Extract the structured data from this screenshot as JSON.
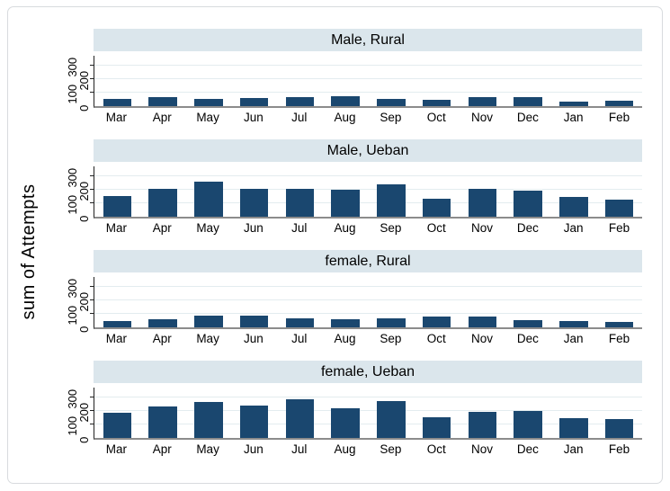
{
  "figure": {
    "y_axis_title": "sum of Attempts",
    "colors": {
      "bar": "#1a476f",
      "strip_background": "#dbe6ec",
      "gridline": "#e3ecef",
      "baseline": "#8c8c8c",
      "axis": "#222222",
      "frame_border": "#d8dbde",
      "background": "#ffffff"
    }
  },
  "chart_data": [
    {
      "type": "bar",
      "title": "Male, Rural",
      "categories": [
        "Mar",
        "Apr",
        "May",
        "Jun",
        "Jul",
        "Aug",
        "Sep",
        "Oct",
        "Nov",
        "Dec",
        "Jan",
        "Feb"
      ],
      "values": [
        56,
        64,
        56,
        60,
        67,
        76,
        56,
        49,
        67,
        64,
        33,
        42
      ],
      "xlabel": "",
      "ylabel": "sum of Attempts",
      "yticks": [
        0,
        100,
        200,
        300
      ],
      "ylim": [
        0,
        375
      ],
      "grid": true,
      "legend": "none"
    },
    {
      "type": "bar",
      "title": "Male, Ueban",
      "categories": [
        "Mar",
        "Apr",
        "May",
        "Jun",
        "Jul",
        "Aug",
        "Sep",
        "Oct",
        "Nov",
        "Dec",
        "Jan",
        "Feb"
      ],
      "values": [
        156,
        204,
        260,
        204,
        209,
        200,
        242,
        133,
        209,
        191,
        144,
        127
      ],
      "xlabel": "",
      "ylabel": "sum of Attempts",
      "yticks": [
        0,
        100,
        200,
        300
      ],
      "ylim": [
        0,
        375
      ],
      "grid": true,
      "legend": "none"
    },
    {
      "type": "bar",
      "title": "female, Rural",
      "categories": [
        "Mar",
        "Apr",
        "May",
        "Jun",
        "Jul",
        "Aug",
        "Sep",
        "Oct",
        "Nov",
        "Dec",
        "Jan",
        "Feb"
      ],
      "values": [
        44,
        60,
        89,
        84,
        67,
        62,
        69,
        78,
        82,
        51,
        47,
        38
      ],
      "xlabel": "",
      "ylabel": "sum of Attempts",
      "yticks": [
        0,
        100,
        200,
        300
      ],
      "ylim": [
        0,
        375
      ],
      "grid": true,
      "legend": "none"
    },
    {
      "type": "bar",
      "title": "female, Ueban",
      "categories": [
        "Mar",
        "Apr",
        "May",
        "Jun",
        "Jul",
        "Aug",
        "Sep",
        "Oct",
        "Nov",
        "Dec",
        "Jan",
        "Feb"
      ],
      "values": [
        189,
        233,
        267,
        240,
        287,
        218,
        273,
        156,
        196,
        202,
        147,
        138
      ],
      "xlabel": "",
      "ylabel": "sum of Attempts",
      "yticks": [
        0,
        100,
        200,
        300
      ],
      "ylim": [
        0,
        375
      ],
      "grid": true,
      "legend": "none"
    }
  ]
}
